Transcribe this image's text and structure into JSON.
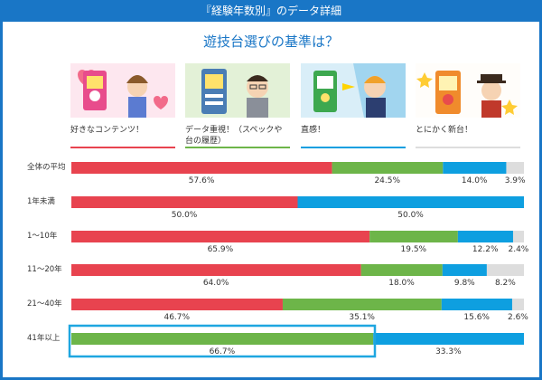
{
  "header": {
    "title": "『経験年数別』のデータ詳細"
  },
  "question": "遊技台選びの基準は？",
  "legend": [
    {
      "label": "好きなコンテンツ！",
      "color": "#e8434f",
      "icon": "favorite-content-illustration"
    },
    {
      "label": "データ重視！（スペックや台の履歴）",
      "color": "#6db549",
      "icon": "data-focused-illustration"
    },
    {
      "label": "直感！",
      "color": "#0e9fe0",
      "icon": "intuition-illustration"
    },
    {
      "label": "とにかく新台！",
      "color": "#dddddd",
      "icon": "new-machine-illustration"
    }
  ],
  "chart_data": {
    "type": "bar",
    "stacked": true,
    "orientation": "horizontal",
    "normalized_to_percent": true,
    "categories": [
      "全体の平均",
      "1年未満",
      "1～10年",
      "11～20年",
      "21～40年",
      "41年以上"
    ],
    "series": [
      {
        "name": "好きなコンテンツ！",
        "color": "#e8434f",
        "values": [
          57.6,
          50.0,
          65.9,
          64.0,
          46.7,
          0
        ]
      },
      {
        "name": "データ重視！（スペックや台の履歴）",
        "color": "#6db549",
        "values": [
          24.5,
          0,
          19.5,
          18.0,
          35.1,
          66.7
        ]
      },
      {
        "name": "直感！",
        "color": "#0e9fe0",
        "values": [
          14.0,
          50.0,
          12.2,
          9.8,
          15.6,
          33.3
        ]
      },
      {
        "name": "とにかく新台！",
        "color": "#dddddd",
        "values": [
          3.9,
          0,
          2.4,
          8.2,
          2.6,
          0
        ]
      }
    ],
    "value_labels": [
      [
        "57.6%",
        "24.5%",
        "14.0%",
        "3.9%"
      ],
      [
        "50.0%",
        "",
        "50.0%",
        ""
      ],
      [
        "65.9%",
        "19.5%",
        "12.2%",
        "2.4%"
      ],
      [
        "64.0%",
        "18.0%",
        "9.8%",
        "8.2%"
      ],
      [
        "46.7%",
        "35.1%",
        "15.6%",
        "2.6%"
      ],
      [
        "",
        "66.7%",
        "33.3%",
        ""
      ]
    ],
    "highlighted_category": "41年以上",
    "highlight_color": "#1ea6e0",
    "xlim": [
      0,
      100
    ]
  }
}
